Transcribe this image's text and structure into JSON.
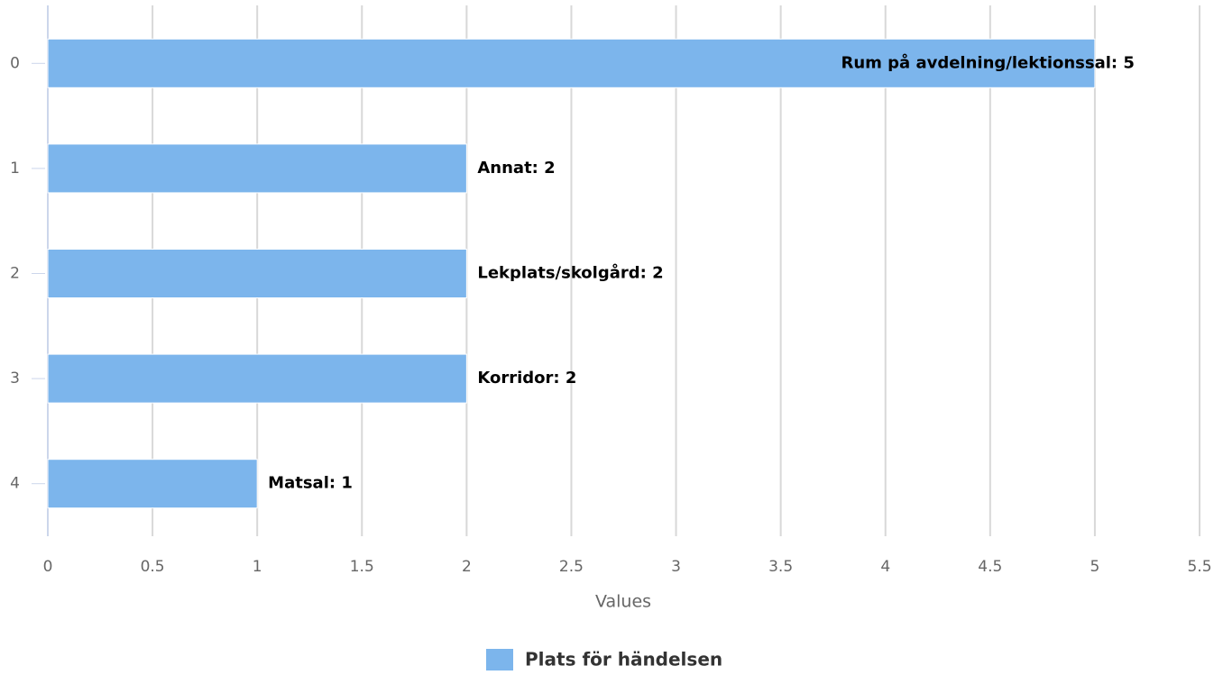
{
  "chart_data": {
    "type": "bar",
    "orientation": "horizontal",
    "categories": [
      "0",
      "1",
      "2",
      "3",
      "4"
    ],
    "series": [
      {
        "name": "Plats för händelsen",
        "color": "#7cb5ec",
        "values": [
          5,
          2,
          2,
          2,
          1
        ],
        "value_labels": [
          "Rum på avdelning/lektionssal: 5",
          "Annat: 2",
          "Lekplats/skolgård: 2",
          "Korridor: 2",
          "Matsal: 1"
        ]
      }
    ],
    "xlabel": "Values",
    "xlim": [
      0,
      5.5
    ],
    "xticks": [
      0,
      0.5,
      1,
      1.5,
      2,
      2.5,
      3,
      3.5,
      4,
      4.5,
      5,
      5.5
    ],
    "grid": true,
    "legend": "bottom"
  }
}
